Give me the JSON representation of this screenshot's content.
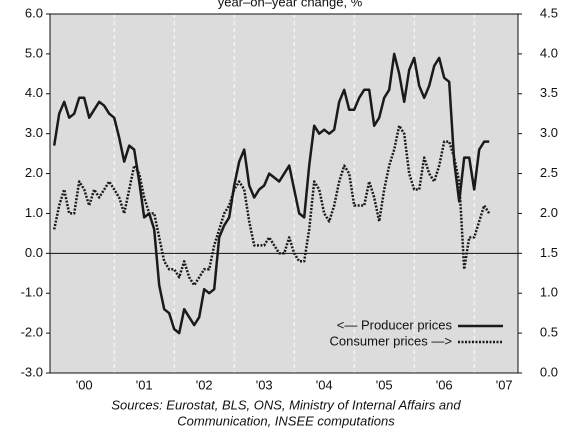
{
  "chart_data": {
    "type": "line",
    "subtitle": "year–on–year change, %",
    "source": [
      "Sources: Eurostat, BLS, ONS, Ministry of Internal Affairs and",
      "Communication, INSEE computations"
    ],
    "xlim": [
      1999.93,
      2007.73
    ],
    "xticks": [
      {
        "value": 2000.5,
        "label": "'00"
      },
      {
        "value": 2001.5,
        "label": "'01"
      },
      {
        "value": 2002.5,
        "label": "'02"
      },
      {
        "value": 2003.5,
        "label": "'03"
      },
      {
        "value": 2004.5,
        "label": "'04"
      },
      {
        "value": 2005.5,
        "label": "'05"
      },
      {
        "value": 2006.5,
        "label": "'06"
      },
      {
        "value": 2007.5,
        "label": "'07"
      }
    ],
    "xgrid": [
      2001,
      2002,
      2003,
      2004,
      2005,
      2006,
      2007
    ],
    "ylim": [
      -3,
      6
    ],
    "yticks": [
      {
        "value": -3,
        "label": "-3.0"
      },
      {
        "value": -2,
        "label": "-2.0"
      },
      {
        "value": -1,
        "label": "-1.0"
      },
      {
        "value": 0,
        "label": "0.0"
      },
      {
        "value": 1,
        "label": "1.0"
      },
      {
        "value": 2,
        "label": "2.0"
      },
      {
        "value": 3,
        "label": "3.0"
      },
      {
        "value": 4,
        "label": "4.0"
      },
      {
        "value": 5,
        "label": "5.0"
      },
      {
        "value": 6,
        "label": "6.0"
      }
    ],
    "y2lim": [
      0,
      4.5
    ],
    "y2ticks": [
      {
        "value": 0,
        "label": "0.0"
      },
      0.5,
      {
        "value": 1,
        "label": "1.0"
      },
      1.5,
      {
        "value": 2,
        "label": "2.0"
      },
      2.5,
      {
        "value": 3,
        "label": "3.0"
      },
      3.5,
      {
        "value": 4,
        "label": "4.0"
      },
      4.5
    ],
    "zero_line": true,
    "background": "#dcdcdc",
    "legend": "lower right",
    "x": [
      2000,
      2000.083,
      2000.167,
      2000.25,
      2000.333,
      2000.417,
      2000.5,
      2000.583,
      2000.667,
      2000.75,
      2000.833,
      2000.917,
      2001,
      2001.083,
      2001.167,
      2001.25,
      2001.333,
      2001.417,
      2001.5,
      2001.583,
      2001.667,
      2001.75,
      2001.833,
      2001.917,
      2002,
      2002.083,
      2002.167,
      2002.25,
      2002.333,
      2002.417,
      2002.5,
      2002.583,
      2002.667,
      2002.75,
      2002.833,
      2002.917,
      2003,
      2003.083,
      2003.167,
      2003.25,
      2003.333,
      2003.417,
      2003.5,
      2003.583,
      2003.667,
      2003.75,
      2003.833,
      2003.917,
      2004,
      2004.083,
      2004.167,
      2004.25,
      2004.333,
      2004.417,
      2004.5,
      2004.583,
      2004.667,
      2004.75,
      2004.833,
      2004.917,
      2005,
      2005.083,
      2005.167,
      2005.25,
      2005.333,
      2005.417,
      2005.5,
      2005.583,
      2005.667,
      2005.75,
      2005.833,
      2005.917,
      2006,
      2006.083,
      2006.167,
      2006.25,
      2006.333,
      2006.417,
      2006.5,
      2006.583,
      2006.667,
      2006.75,
      2006.833,
      2006.917,
      2007,
      2007.083,
      2007.167,
      2007.25
    ],
    "series": [
      {
        "name": "<— Producer prices",
        "color": "#1a1a1a",
        "style": "solid",
        "values": [
          2.7,
          3.5,
          3.8,
          3.4,
          3.5,
          3.9,
          3.9,
          3.4,
          3.6,
          3.8,
          3.7,
          3.5,
          3.4,
          2.9,
          2.3,
          2.7,
          2.6,
          1.8,
          0.9,
          1.0,
          0.6,
          -0.8,
          -1.4,
          -1.5,
          -1.9,
          -2.0,
          -1.4,
          -1.6,
          -1.8,
          -1.6,
          -0.9,
          -1.0,
          -0.9,
          0.4,
          0.7,
          0.9,
          1.7,
          2.3,
          2.6,
          1.7,
          1.4,
          1.6,
          1.7,
          2.0,
          1.9,
          1.8,
          2.0,
          2.2,
          1.6,
          1.0,
          0.9,
          2.2,
          3.2,
          3.0,
          3.1,
          3.0,
          3.1,
          3.8,
          4.1,
          3.6,
          3.6,
          3.9,
          4.1,
          4.1,
          3.2,
          3.4,
          3.9,
          4.1,
          5.0,
          4.5,
          3.8,
          4.6,
          4.9,
          4.2,
          3.9,
          4.2,
          4.7,
          4.9,
          4.4,
          4.3,
          2.3,
          1.3,
          2.4,
          2.4,
          1.6,
          2.6,
          2.8,
          2.8
        ]
      },
      {
        "name": "Consumer prices —>",
        "color": "#1a1a1a",
        "style": "dotted",
        "axis": "y2",
        "values": [
          1.8,
          2.1,
          2.3,
          2.0,
          2.0,
          2.4,
          2.3,
          2.1,
          2.3,
          2.2,
          2.3,
          2.4,
          2.3,
          2.2,
          2.0,
          2.3,
          2.6,
          2.5,
          2.2,
          2.0,
          2.0,
          1.7,
          1.4,
          1.3,
          1.3,
          1.2,
          1.4,
          1.2,
          1.1,
          1.2,
          1.3,
          1.3,
          1.6,
          1.8,
          2.0,
          2.1,
          2.3,
          2.4,
          2.3,
          1.9,
          1.6,
          1.6,
          1.6,
          1.7,
          1.6,
          1.5,
          1.5,
          1.7,
          1.5,
          1.4,
          1.4,
          1.8,
          2.4,
          2.3,
          2.0,
          1.9,
          2.1,
          2.4,
          2.6,
          2.5,
          2.1,
          2.1,
          2.1,
          2.4,
          2.2,
          1.9,
          2.3,
          2.6,
          2.8,
          3.1,
          3.0,
          2.5,
          2.3,
          2.3,
          2.7,
          2.5,
          2.4,
          2.6,
          2.9,
          2.9,
          2.7,
          2.4,
          1.3,
          1.7,
          1.7,
          1.9,
          2.1,
          2.0
        ]
      }
    ]
  }
}
